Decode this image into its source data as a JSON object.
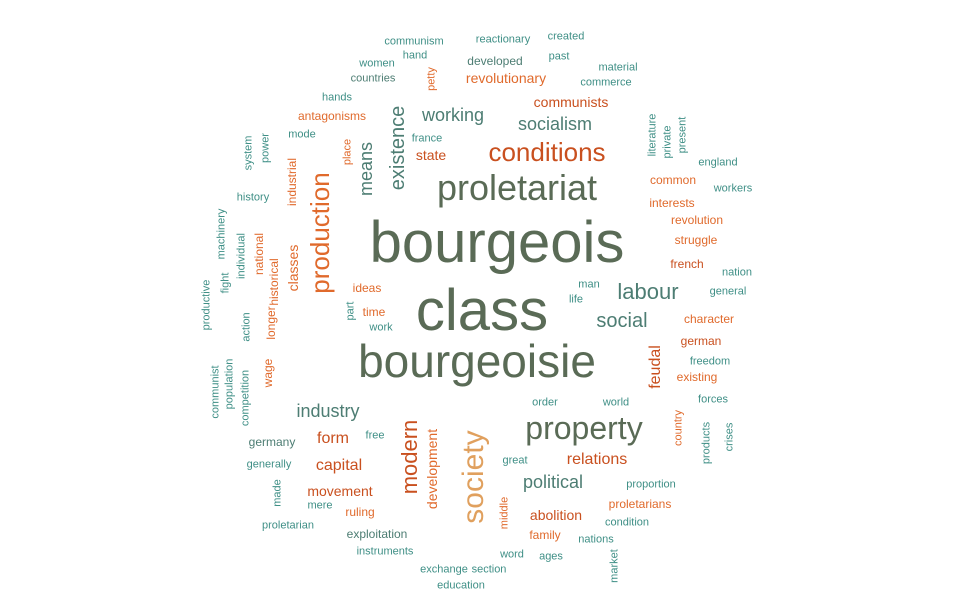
{
  "colors": {
    "dark": "#5a6b56",
    "slate": "#4d7d73",
    "teal": "#3f8f86",
    "orange": "#e06a2c",
    "red": "#c9501f",
    "tan": "#e0a05e"
  },
  "words": [
    {
      "text": "bourgeois",
      "color": "dark",
      "v": false
    },
    {
      "text": "class",
      "color": "dark",
      "v": false
    },
    {
      "text": "bourgeoisie",
      "color": "dark",
      "v": false
    },
    {
      "text": "proletariat",
      "color": "dark",
      "v": false
    },
    {
      "text": "conditions",
      "color": "red",
      "v": false
    },
    {
      "text": "property",
      "color": "dark",
      "v": false
    },
    {
      "text": "production",
      "color": "orange",
      "v": true
    },
    {
      "text": "society",
      "color": "tan",
      "v": true
    },
    {
      "text": "modern",
      "color": "red",
      "v": true
    },
    {
      "text": "existence",
      "color": "slate",
      "v": true
    },
    {
      "text": "means",
      "color": "slate",
      "v": true
    },
    {
      "text": "socialism",
      "color": "slate",
      "v": false
    },
    {
      "text": "working",
      "color": "slate",
      "v": false
    },
    {
      "text": "labour",
      "color": "slate",
      "v": false
    },
    {
      "text": "social",
      "color": "slate",
      "v": false
    },
    {
      "text": "industry",
      "color": "slate",
      "v": false
    },
    {
      "text": "communists",
      "color": "red",
      "v": false
    },
    {
      "text": "revolutionary",
      "color": "orange",
      "v": false
    },
    {
      "text": "state",
      "color": "red",
      "v": false
    },
    {
      "text": "development",
      "color": "orange",
      "v": true
    },
    {
      "text": "political",
      "color": "slate",
      "v": false
    },
    {
      "text": "relations",
      "color": "red",
      "v": false
    },
    {
      "text": "capital",
      "color": "red",
      "v": false
    },
    {
      "text": "form",
      "color": "red",
      "v": false
    },
    {
      "text": "movement",
      "color": "red",
      "v": false
    },
    {
      "text": "abolition",
      "color": "red",
      "v": false
    },
    {
      "text": "feudal",
      "color": "red",
      "v": true
    },
    {
      "text": "classes",
      "color": "orange",
      "v": true
    },
    {
      "text": "historical",
      "color": "orange",
      "v": true
    },
    {
      "text": "national",
      "color": "orange",
      "v": true
    },
    {
      "text": "industrial",
      "color": "orange",
      "v": true
    },
    {
      "text": "longer",
      "color": "orange",
      "v": true
    },
    {
      "text": "wage",
      "color": "orange",
      "v": true
    },
    {
      "text": "ideas",
      "color": "orange",
      "v": false
    },
    {
      "text": "time",
      "color": "orange",
      "v": false
    },
    {
      "text": "common",
      "color": "orange",
      "v": false
    },
    {
      "text": "interests",
      "color": "orange",
      "v": false
    },
    {
      "text": "revolution",
      "color": "orange",
      "v": false
    },
    {
      "text": "struggle",
      "color": "orange",
      "v": false
    },
    {
      "text": "french",
      "color": "red",
      "v": false
    },
    {
      "text": "character",
      "color": "orange",
      "v": false
    },
    {
      "text": "german",
      "color": "red",
      "v": false
    },
    {
      "text": "existing",
      "color": "orange",
      "v": false
    },
    {
      "text": "antagonisms",
      "color": "orange",
      "v": false
    },
    {
      "text": "germany",
      "color": "slate",
      "v": false
    },
    {
      "text": "ruling",
      "color": "orange",
      "v": false
    },
    {
      "text": "exploitation",
      "color": "slate",
      "v": false
    },
    {
      "text": "family",
      "color": "orange",
      "v": false
    },
    {
      "text": "proletarians",
      "color": "orange",
      "v": false
    },
    {
      "text": "proportion",
      "color": "teal",
      "v": false
    },
    {
      "text": "developed",
      "color": "slate",
      "v": false
    },
    {
      "text": "countries",
      "color": "slate",
      "v": false
    },
    {
      "text": "communism",
      "color": "teal",
      "v": false
    },
    {
      "text": "reactionary",
      "color": "teal",
      "v": false
    },
    {
      "text": "created",
      "color": "teal",
      "v": false
    },
    {
      "text": "hand",
      "color": "teal",
      "v": false
    },
    {
      "text": "past",
      "color": "teal",
      "v": false
    },
    {
      "text": "women",
      "color": "teal",
      "v": false
    },
    {
      "text": "petty",
      "color": "orange",
      "v": true
    },
    {
      "text": "material",
      "color": "teal",
      "v": false
    },
    {
      "text": "commerce",
      "color": "teal",
      "v": false
    },
    {
      "text": "hands",
      "color": "teal",
      "v": false
    },
    {
      "text": "mode",
      "color": "teal",
      "v": false
    },
    {
      "text": "france",
      "color": "teal",
      "v": false
    },
    {
      "text": "place",
      "color": "orange",
      "v": true
    },
    {
      "text": "literature",
      "color": "teal",
      "v": true
    },
    {
      "text": "private",
      "color": "teal",
      "v": true
    },
    {
      "text": "present",
      "color": "teal",
      "v": true
    },
    {
      "text": "england",
      "color": "teal",
      "v": false
    },
    {
      "text": "workers",
      "color": "teal",
      "v": false
    },
    {
      "text": "system",
      "color": "teal",
      "v": true
    },
    {
      "text": "power",
      "color": "teal",
      "v": true
    },
    {
      "text": "history",
      "color": "teal",
      "v": false
    },
    {
      "text": "machinery",
      "color": "teal",
      "v": true
    },
    {
      "text": "individual",
      "color": "teal",
      "v": true
    },
    {
      "text": "fight",
      "color": "teal",
      "v": true
    },
    {
      "text": "productive",
      "color": "teal",
      "v": true
    },
    {
      "text": "action",
      "color": "teal",
      "v": true
    },
    {
      "text": "part",
      "color": "teal",
      "v": true
    },
    {
      "text": "work",
      "color": "teal",
      "v": false
    },
    {
      "text": "man",
      "color": "teal",
      "v": false
    },
    {
      "text": "life",
      "color": "teal",
      "v": false
    },
    {
      "text": "nation",
      "color": "teal",
      "v": false
    },
    {
      "text": "general",
      "color": "teal",
      "v": false
    },
    {
      "text": "freedom",
      "color": "teal",
      "v": false
    },
    {
      "text": "communist",
      "color": "teal",
      "v": true
    },
    {
      "text": "population",
      "color": "teal",
      "v": true
    },
    {
      "text": "competition",
      "color": "teal",
      "v": true
    },
    {
      "text": "forces",
      "color": "teal",
      "v": false
    },
    {
      "text": "order",
      "color": "teal",
      "v": false
    },
    {
      "text": "world",
      "color": "teal",
      "v": false
    },
    {
      "text": "country",
      "color": "orange",
      "v": true
    },
    {
      "text": "products",
      "color": "teal",
      "v": true
    },
    {
      "text": "crises",
      "color": "teal",
      "v": true
    },
    {
      "text": "free",
      "color": "teal",
      "v": false
    },
    {
      "text": "great",
      "color": "teal",
      "v": false
    },
    {
      "text": "generally",
      "color": "teal",
      "v": false
    },
    {
      "text": "made",
      "color": "teal",
      "v": true
    },
    {
      "text": "mere",
      "color": "teal",
      "v": false
    },
    {
      "text": "middle",
      "color": "orange",
      "v": true
    },
    {
      "text": "condition",
      "color": "teal",
      "v": false
    },
    {
      "text": "proletarian",
      "color": "teal",
      "v": false
    },
    {
      "text": "instruments",
      "color": "teal",
      "v": false
    },
    {
      "text": "nations",
      "color": "teal",
      "v": false
    },
    {
      "text": "word",
      "color": "teal",
      "v": false
    },
    {
      "text": "ages",
      "color": "teal",
      "v": false
    },
    {
      "text": "market",
      "color": "teal",
      "v": true
    },
    {
      "text": "exchange",
      "color": "teal",
      "v": false
    },
    {
      "text": "section",
      "color": "teal",
      "v": false
    },
    {
      "text": "education",
      "color": "teal",
      "v": false
    }
  ]
}
